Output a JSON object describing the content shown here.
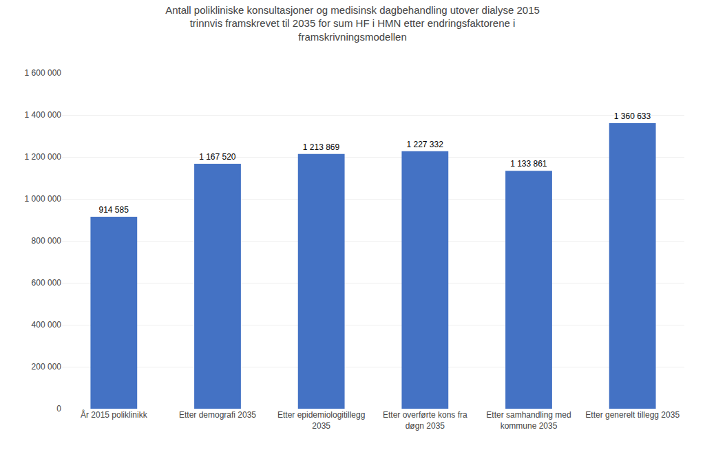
{
  "chart_data": {
    "type": "bar",
    "title": "Antall polikliniske konsultasjoner og medisinsk dagbehandling utover dialyse 2015\ntrinnvis framskrevet til 2035 for sum HF i HMN etter endringsfaktorene i\nframskrivningsmodellen",
    "categories": [
      "År 2015 poliklinikk",
      "Etter demografi 2035",
      "Etter epidemiologitillegg\n2035",
      "Etter overførte kons fra\ndøgn 2035",
      "Etter samhandling med\nkommune 2035",
      "Etter generelt tillegg 2035"
    ],
    "values": [
      914585,
      1167520,
      1213869,
      1227332,
      1133861,
      1360633
    ],
    "value_labels": [
      "914 585",
      "1 167 520",
      "1 213 869",
      "1 227 332",
      "1 133 861",
      "1 360 633"
    ],
    "data_labels": true,
    "color": "#4472C4",
    "ylim": [
      0,
      1600000
    ],
    "yticks": [
      0,
      {
        "value": 200000,
        "label": "200 000"
      },
      {
        "value": 400000,
        "label": "400 000"
      },
      {
        "value": 600000,
        "label": "600 000"
      },
      {
        "value": 800000,
        "label": "800 000"
      },
      {
        "value": 1000000,
        "label": "1 000 000"
      },
      {
        "value": 1200000,
        "label": "1 200 000"
      },
      {
        "value": 1400000,
        "label": "1 400 000"
      },
      {
        "value": 1600000,
        "label": "1 600 000"
      }
    ],
    "grid": true
  }
}
